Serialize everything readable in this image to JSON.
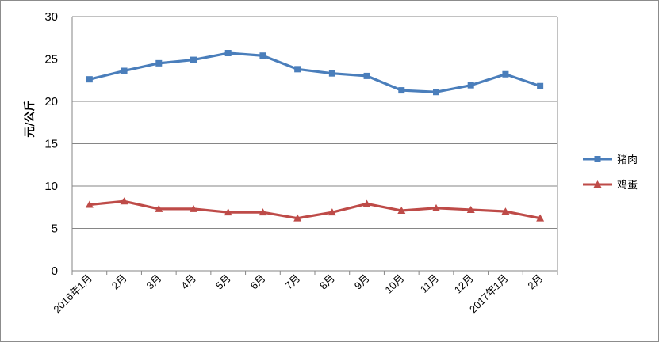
{
  "chart_data": {
    "type": "line",
    "title": "",
    "xlabel": "",
    "ylabel": "元/公斤",
    "ylim": [
      0,
      30
    ],
    "yticks": [
      0,
      5,
      10,
      15,
      20,
      25,
      30
    ],
    "grid": true,
    "legend_position": "right",
    "categories": [
      "2016年1月",
      "2月",
      "3月",
      "4月",
      "5月",
      "6月",
      "7月",
      "8月",
      "9月",
      "10月",
      "11月",
      "12月",
      "2017年1月",
      "2月"
    ],
    "series": [
      {
        "name": "猪肉",
        "color": "#4a7ebb",
        "marker": "square",
        "values": [
          22.6,
          23.6,
          24.5,
          24.9,
          25.7,
          25.4,
          23.8,
          23.3,
          23.0,
          21.3,
          21.1,
          21.9,
          23.2,
          21.8
        ]
      },
      {
        "name": "鸡蛋",
        "color": "#be4b48",
        "marker": "triangle",
        "values": [
          7.8,
          8.2,
          7.3,
          7.3,
          6.9,
          6.9,
          6.2,
          6.9,
          7.9,
          7.1,
          7.4,
          7.2,
          7.0,
          6.2
        ]
      }
    ]
  }
}
